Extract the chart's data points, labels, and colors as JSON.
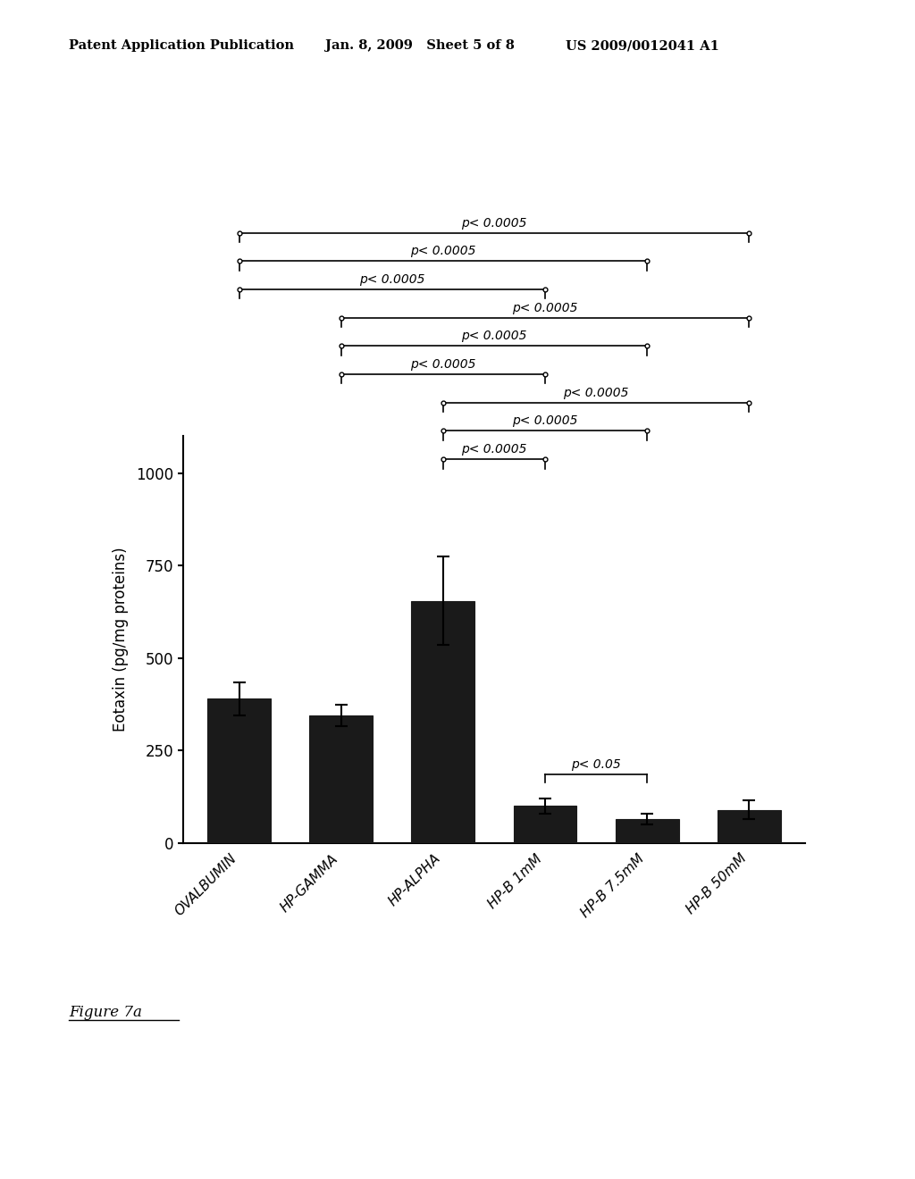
{
  "categories": [
    "OVALBUMIN",
    "HP-GAMMA",
    "HP-ALPHA",
    "HP-B 1mM",
    "HP-B 7.5mM",
    "HP-B 50mM"
  ],
  "values": [
    390,
    345,
    655,
    100,
    65,
    90
  ],
  "errors": [
    45,
    30,
    120,
    20,
    15,
    25
  ],
  "bar_color": "#1a1a1a",
  "ylabel": "Eotaxin (pg/mg proteins)",
  "yticks": [
    0,
    250,
    500,
    750,
    1000
  ],
  "figure_label": "Figure 7a",
  "header_left": "Patent Application Publication",
  "header_mid": "Jan. 8, 2009   Sheet 5 of 8",
  "header_right": "US 2009/0012041 A1",
  "bracket_defs": [
    [
      0,
      5,
      9,
      "p< 0.0005"
    ],
    [
      0,
      4,
      8,
      "p< 0.0005"
    ],
    [
      0,
      3,
      7,
      "p< 0.0005"
    ],
    [
      1,
      5,
      6,
      "p< 0.0005"
    ],
    [
      1,
      4,
      5,
      "p< 0.0005"
    ],
    [
      1,
      3,
      4,
      "p< 0.0005"
    ],
    [
      2,
      5,
      3,
      "p< 0.0005"
    ],
    [
      2,
      4,
      2,
      "p< 0.0005"
    ],
    [
      2,
      3,
      1,
      "p< 0.0005"
    ],
    [
      3,
      4,
      -1,
      "p< 0.05"
    ]
  ]
}
